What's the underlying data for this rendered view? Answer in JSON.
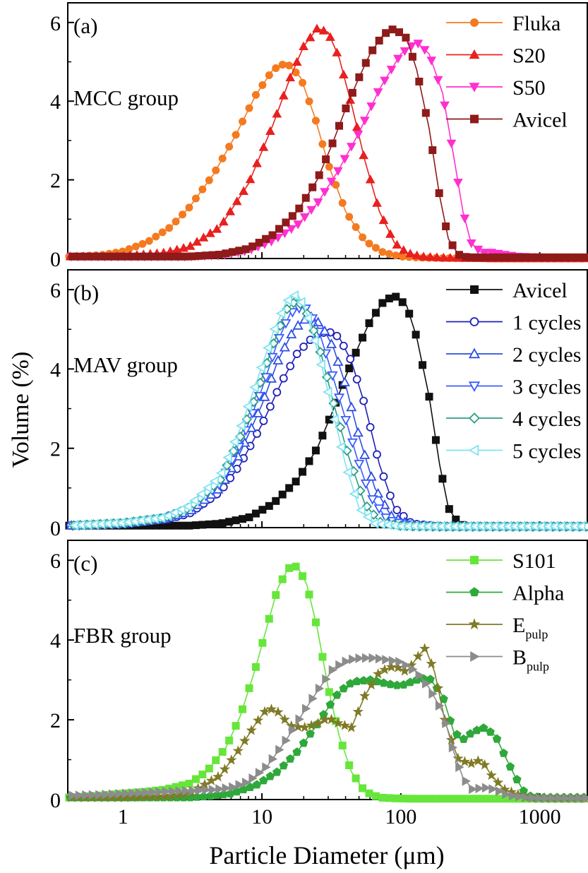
{
  "figure": {
    "ylabel": "Volume (%)",
    "xlabel": "Particle Diameter (μm)",
    "x_ticks": [
      "1",
      "10",
      "100",
      "1000"
    ],
    "y_ticks": [
      "0",
      "2",
      "4",
      "6"
    ]
  },
  "chart_data": [
    {
      "type": "line",
      "panel": "(a)",
      "group_label": "MCC group",
      "xscale": "log",
      "xlim": [
        0.4,
        2200
      ],
      "ylim": [
        0,
        6.5
      ],
      "legend_position": "top-right",
      "series": [
        {
          "name": "Fluka",
          "color": "#F47A20",
          "marker": "circle-filled",
          "x": [
            0.4,
            0.5,
            0.7,
            1.0,
            1.5,
            2.2,
            3.0,
            4.5,
            6.5,
            9.0,
            12.0,
            15.0,
            19.0,
            24.0,
            30.0,
            40.0,
            55.0,
            75.0,
            100.0,
            140.0,
            200.0,
            300.0,
            500.0,
            800.0,
            1200.0,
            2000.0
          ],
          "y": [
            0.05,
            0.06,
            0.09,
            0.18,
            0.42,
            0.8,
            1.3,
            2.15,
            3.15,
            4.15,
            4.8,
            4.98,
            4.6,
            3.6,
            2.4,
            1.2,
            0.45,
            0.15,
            0.05,
            0.02,
            0.01,
            0.01,
            0.0,
            0.0,
            0.0,
            0.0
          ]
        },
        {
          "name": "S20",
          "color": "#E8201E",
          "marker": "triangle-up-filled",
          "x": [
            0.4,
            0.7,
            1.0,
            2.0,
            3.0,
            5.0,
            8.0,
            12.0,
            16.0,
            20.0,
            25.0,
            30.0,
            36.0,
            45.0,
            55.0,
            70.0,
            90.0,
            110.0,
            140.0,
            200.0,
            300.0,
            500.0,
            1000.0,
            2000.0
          ],
          "y": [
            0.05,
            0.05,
            0.06,
            0.15,
            0.3,
            0.8,
            1.9,
            3.4,
            4.6,
            5.4,
            5.85,
            5.75,
            5.1,
            3.8,
            2.5,
            1.2,
            0.4,
            0.15,
            0.05,
            0.02,
            0.01,
            0.0,
            0.0,
            0.0
          ]
        },
        {
          "name": "S50",
          "color": "#FF2FD0",
          "marker": "triangle-down-filled",
          "x": [
            0.4,
            1.0,
            3.0,
            5.0,
            8.0,
            12.0,
            18.0,
            25.0,
            35.0,
            50.0,
            70.0,
            100.0,
            130.0,
            160.0,
            200.0,
            240.0,
            280.0,
            320.0,
            380.0,
            450.0,
            550.0,
            700.0,
            1000.0,
            2000.0
          ],
          "y": [
            0.05,
            0.05,
            0.05,
            0.08,
            0.2,
            0.45,
            0.85,
            1.4,
            2.2,
            3.2,
            4.3,
            5.2,
            5.5,
            5.2,
            4.2,
            2.6,
            1.2,
            0.4,
            0.15,
            0.15,
            0.1,
            0.05,
            0.03,
            0.03
          ]
        },
        {
          "name": "Avicel",
          "color": "#8E1A1A",
          "marker": "square-filled",
          "x": [
            0.4,
            1.0,
            3.0,
            5.0,
            8.0,
            12.0,
            18.0,
            25.0,
            32.0,
            40.0,
            50.0,
            60.0,
            75.0,
            90.0,
            110.0,
            130.0,
            160.0,
            190.0,
            220.0,
            260.0,
            300.0,
            500.0,
            1000.0,
            2000.0
          ],
          "y": [
            0.05,
            0.05,
            0.05,
            0.1,
            0.25,
            0.6,
            1.2,
            2.0,
            2.9,
            3.8,
            4.6,
            5.2,
            5.7,
            5.85,
            5.6,
            4.8,
            3.3,
            1.6,
            0.5,
            0.1,
            0.03,
            0.03,
            0.03,
            0.03
          ]
        }
      ],
      "legend": [
        {
          "label": "Fluka"
        },
        {
          "label": "S20"
        },
        {
          "label": "S50"
        },
        {
          "label": "Avicel"
        }
      ]
    },
    {
      "type": "line",
      "panel": "(b)",
      "group_label": "MAV group",
      "xscale": "log",
      "xlim": [
        0.4,
        2200
      ],
      "ylim": [
        0,
        6.5
      ],
      "legend_position": "top-right",
      "series": [
        {
          "name": "Avicel",
          "color": "#111111",
          "marker": "square-filled",
          "x": [
            0.4,
            1.0,
            3.0,
            5.0,
            8.0,
            12.0,
            18.0,
            25.0,
            32.0,
            40.0,
            50.0,
            60.0,
            75.0,
            90.0,
            110.0,
            130.0,
            160.0,
            190.0,
            220.0,
            260.0,
            300.0,
            500.0,
            1000.0,
            2000.0
          ],
          "y": [
            0.05,
            0.05,
            0.05,
            0.1,
            0.25,
            0.6,
            1.2,
            2.0,
            2.9,
            3.8,
            4.6,
            5.2,
            5.7,
            5.85,
            5.6,
            4.8,
            3.3,
            1.6,
            0.5,
            0.1,
            0.03,
            0.03,
            0.03,
            0.03
          ]
        },
        {
          "name": "1 cycles",
          "color": "#1F1FB8",
          "marker": "circle-open",
          "x": [
            0.4,
            1.0,
            2.0,
            3.0,
            5.0,
            7.0,
            10.0,
            14.0,
            18.0,
            24.0,
            30.0,
            36.0,
            44.0,
            55.0,
            70.0,
            90.0,
            120.0,
            200.0,
            500.0,
            1000.0,
            2000.0
          ],
          "y": [
            0.05,
            0.1,
            0.2,
            0.35,
            0.9,
            1.6,
            2.6,
            3.7,
            4.4,
            4.85,
            4.95,
            4.8,
            4.2,
            3.1,
            1.6,
            0.5,
            0.1,
            0.03,
            0.03,
            0.03,
            0.03
          ]
        },
        {
          "name": "2 cycles",
          "color": "#2E4FE0",
          "marker": "triangle-up-open",
          "x": [
            0.4,
            1.0,
            2.0,
            3.0,
            5.0,
            7.0,
            10.0,
            13.0,
            17.0,
            22.0,
            27.0,
            33.0,
            40.0,
            50.0,
            65.0,
            85.0,
            120.0,
            200.0,
            500.0,
            1000.0,
            2000.0
          ],
          "y": [
            0.05,
            0.1,
            0.22,
            0.4,
            1.0,
            1.9,
            3.1,
            4.2,
            5.0,
            5.35,
            5.1,
            4.5,
            3.6,
            2.3,
            1.0,
            0.3,
            0.05,
            0.03,
            0.03,
            0.03,
            0.03
          ]
        },
        {
          "name": "3 cycles",
          "color": "#3A5CFF",
          "marker": "triangle-down-open",
          "x": [
            0.4,
            1.0,
            2.0,
            3.0,
            5.0,
            7.0,
            10.0,
            13.0,
            16.0,
            20.0,
            25.0,
            30.0,
            38.0,
            48.0,
            60.0,
            80.0,
            120.0,
            200.0,
            500.0,
            1000.0,
            2000.0
          ],
          "y": [
            0.05,
            0.1,
            0.24,
            0.45,
            1.1,
            2.1,
            3.5,
            4.7,
            5.4,
            5.6,
            5.1,
            4.2,
            3.0,
            1.8,
            0.8,
            0.2,
            0.04,
            0.03,
            0.03,
            0.03,
            0.03
          ]
        },
        {
          "name": "4 cycles",
          "color": "#2E9C86",
          "marker": "diamond-open",
          "x": [
            0.4,
            1.0,
            2.0,
            3.0,
            5.0,
            7.0,
            9.0,
            12.0,
            15.0,
            18.0,
            22.0,
            27.0,
            33.0,
            42.0,
            55.0,
            70.0,
            100.0,
            200.0,
            500.0,
            1000.0,
            2000.0
          ],
          "y": [
            0.05,
            0.12,
            0.25,
            0.5,
            1.2,
            2.3,
            3.3,
            4.6,
            5.5,
            5.75,
            5.3,
            4.3,
            3.1,
            1.8,
            0.6,
            0.15,
            0.04,
            0.03,
            0.03,
            0.03,
            0.03
          ]
        },
        {
          "name": "5 cycles",
          "color": "#7FE3F0",
          "marker": "triangle-left-open",
          "x": [
            0.4,
            1.0,
            2.0,
            3.0,
            5.0,
            7.0,
            9.0,
            12.0,
            15.0,
            18.0,
            21.0,
            26.0,
            32.0,
            40.0,
            50.0,
            65.0,
            100.0,
            200.0,
            500.0,
            1000.0,
            2000.0
          ],
          "y": [
            0.05,
            0.12,
            0.26,
            0.55,
            1.3,
            2.5,
            3.6,
            4.9,
            5.7,
            5.9,
            5.4,
            4.3,
            3.0,
            1.6,
            0.5,
            0.1,
            0.04,
            0.03,
            0.03,
            0.03,
            0.03
          ]
        }
      ],
      "legend": [
        {
          "label": "Avicel"
        },
        {
          "label": "1 cycles"
        },
        {
          "label": "2 cycles"
        },
        {
          "label": "3 cycles"
        },
        {
          "label": "4 cycles"
        },
        {
          "label": "5 cycles"
        }
      ]
    },
    {
      "type": "line",
      "panel": "(c)",
      "group_label": "FBR group",
      "xscale": "log",
      "xlim": [
        0.4,
        2200
      ],
      "ylim": [
        0,
        6.5
      ],
      "legend_position": "top-right",
      "series": [
        {
          "name": "S101",
          "color": "#66E63A",
          "marker": "square-filled",
          "x": [
            0.4,
            0.7,
            1.0,
            1.5,
            2.0,
            3.0,
            4.0,
            5.5,
            7.0,
            9.0,
            11.0,
            13.0,
            15.5,
            18.0,
            21.0,
            25.0,
            30.0,
            36.0,
            44.0,
            55.0,
            70.0,
            90.0,
            120.0,
            200.0,
            500.0,
            1000.0,
            2000.0
          ],
          "y": [
            0.05,
            0.1,
            0.15,
            0.2,
            0.25,
            0.4,
            0.7,
            1.3,
            2.1,
            3.3,
            4.4,
            5.3,
            5.8,
            5.85,
            5.4,
            4.3,
            2.8,
            1.6,
            0.7,
            0.2,
            0.05,
            0.03,
            0.02,
            0.02,
            0.02,
            0.02,
            0.02
          ]
        },
        {
          "name": "Alpha",
          "color": "#2FA83A",
          "marker": "pentagon-filled",
          "x": [
            0.4,
            1.0,
            2.0,
            3.0,
            4.0,
            6.0,
            9.0,
            13.0,
            18.0,
            24.0,
            30.0,
            36.0,
            45.0,
            60.0,
            80.0,
            100.0,
            130.0,
            160.0,
            200.0,
            240.0,
            280.0,
            330.0,
            400.0,
            480.0,
            560.0,
            660.0,
            800.0,
            1000.0,
            2000.0
          ],
          "y": [
            0.05,
            0.05,
            0.05,
            0.05,
            0.08,
            0.15,
            0.35,
            0.7,
            1.2,
            1.8,
            2.3,
            2.7,
            2.95,
            3.0,
            2.9,
            2.85,
            3.0,
            3.05,
            2.6,
            1.7,
            1.5,
            1.7,
            1.8,
            1.6,
            1.1,
            0.6,
            0.1,
            0.05,
            0.05
          ]
        },
        {
          "name": "Epulp",
          "color": "#7F7A25",
          "marker": "star-filled",
          "x": [
            0.4,
            1.0,
            2.0,
            3.0,
            5.0,
            7.0,
            9.0,
            11.0,
            13.0,
            16.0,
            20.0,
            25.0,
            30.0,
            36.0,
            44.0,
            55.0,
            70.0,
            90.0,
            110.0,
            130.0,
            150.0,
            175.0,
            210.0,
            260.0,
            320.0,
            380.0,
            450.0,
            560.0,
            800.0,
            1200.0,
            2000.0
          ],
          "y": [
            0.05,
            0.05,
            0.08,
            0.15,
            0.6,
            1.3,
            1.9,
            2.3,
            2.2,
            1.85,
            1.8,
            1.9,
            2.05,
            1.9,
            1.8,
            2.6,
            3.2,
            3.35,
            3.2,
            3.55,
            3.8,
            3.2,
            1.9,
            1.0,
            0.9,
            1.0,
            0.6,
            0.25,
            0.05,
            0.03,
            0.03
          ]
        },
        {
          "name": "Bpulp",
          "color": "#8C8C8C",
          "marker": "triangle-right-filled",
          "x": [
            0.4,
            0.7,
            1.0,
            2.0,
            3.0,
            4.5,
            6.0,
            8.0,
            11.0,
            15.0,
            20.0,
            26.0,
            33.0,
            42.0,
            52.0,
            65.0,
            80.0,
            100.0,
            130.0,
            160.0,
            200.0,
            240.0,
            280.0,
            330.0,
            400.0,
            480.0,
            600.0,
            800.0,
            1000.0,
            2000.0
          ],
          "y": [
            0.1,
            0.12,
            0.15,
            0.2,
            0.22,
            0.25,
            0.3,
            0.45,
            0.85,
            1.5,
            2.2,
            2.8,
            3.3,
            3.5,
            3.55,
            3.55,
            3.5,
            3.45,
            3.2,
            2.8,
            2.2,
            1.2,
            0.55,
            0.25,
            0.3,
            0.25,
            0.1,
            0.05,
            0.03,
            0.03
          ]
        }
      ],
      "legend": [
        {
          "label": "S101",
          "sub": ""
        },
        {
          "label": "Alpha",
          "sub": ""
        },
        {
          "label": "E",
          "sub": "pulp"
        },
        {
          "label": "B",
          "sub": "pulp"
        }
      ]
    }
  ]
}
